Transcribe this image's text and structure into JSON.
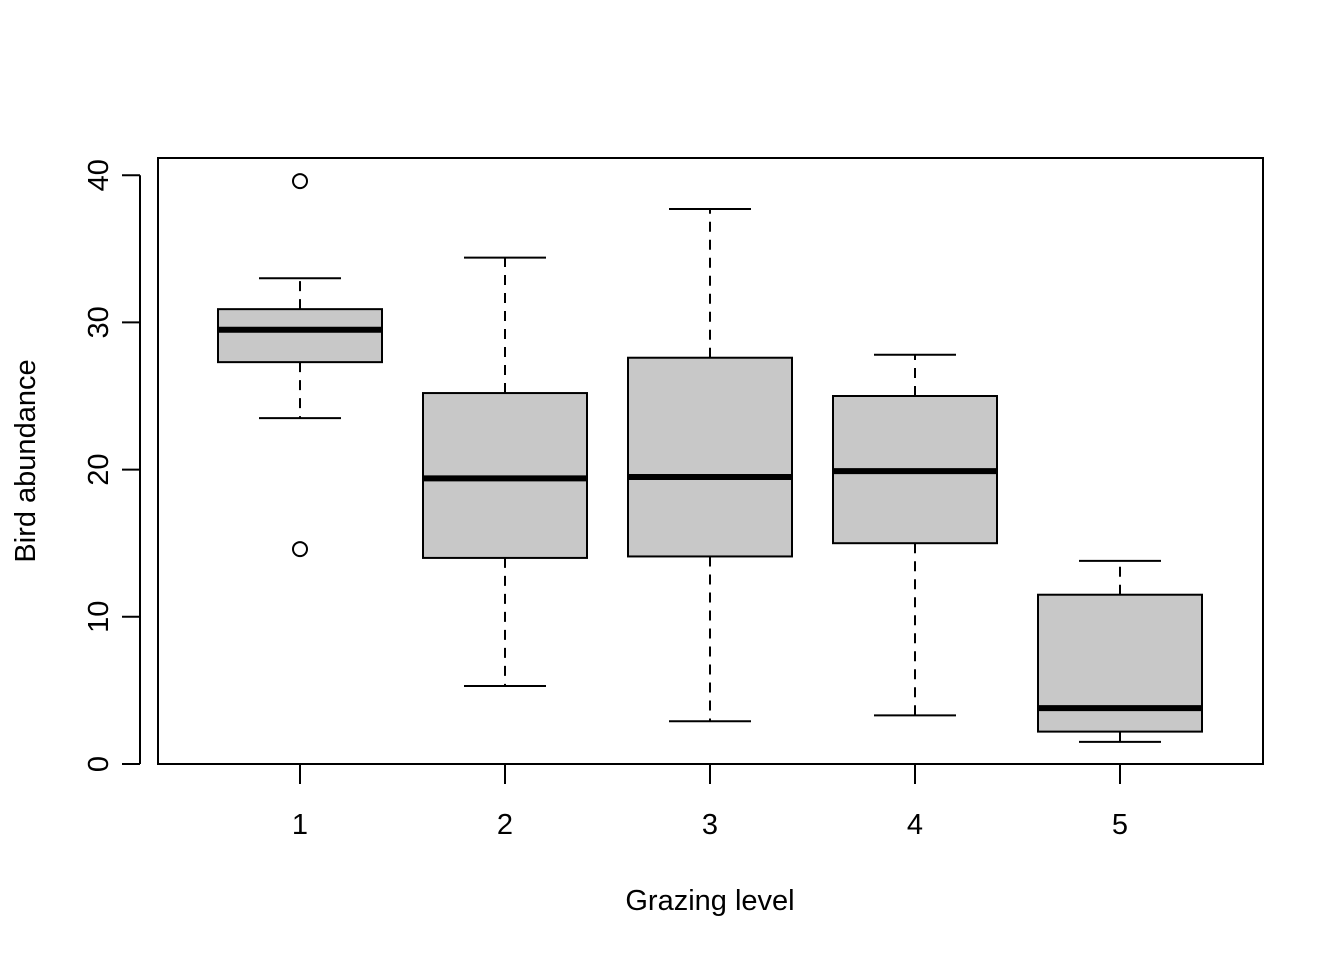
{
  "chart_data": {
    "type": "boxplot",
    "xlabel": "Grazing level",
    "ylabel": "Bird abundance",
    "ylim": [
      0,
      41.2
    ],
    "yticks": [
      0,
      10,
      20,
      30,
      40
    ],
    "categories": [
      "1",
      "2",
      "3",
      "4",
      "5"
    ],
    "box_color": "#c8c8c8",
    "boxes": [
      {
        "category": "1",
        "whisker_low": 23.5,
        "q1": 27.3,
        "median": 29.5,
        "q3": 30.9,
        "whisker_high": 33.0,
        "outliers": [
          14.6,
          39.6
        ]
      },
      {
        "category": "2",
        "whisker_low": 5.3,
        "q1": 14.0,
        "median": 19.4,
        "q3": 25.2,
        "whisker_high": 34.4,
        "outliers": []
      },
      {
        "category": "3",
        "whisker_low": 2.9,
        "q1": 14.1,
        "median": 19.5,
        "q3": 27.6,
        "whisker_high": 37.7,
        "outliers": []
      },
      {
        "category": "4",
        "whisker_low": 3.3,
        "q1": 15.0,
        "median": 19.9,
        "q3": 25.0,
        "whisker_high": 27.8,
        "outliers": []
      },
      {
        "category": "5",
        "whisker_low": 1.5,
        "q1": 2.2,
        "median": 3.8,
        "q3": 11.5,
        "whisker_high": 13.8,
        "outliers": []
      }
    ]
  }
}
